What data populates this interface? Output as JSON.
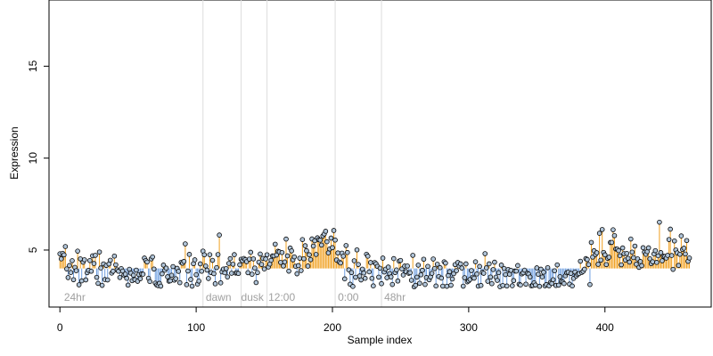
{
  "chart_data": {
    "type": "scatter",
    "title": "",
    "xlabel": "Sample index",
    "ylabel": "Expression",
    "xlim": [
      -8,
      478
    ],
    "ylim": [
      1.9,
      18.6
    ],
    "xticks": [
      0,
      100,
      200,
      300,
      400
    ],
    "yticks": [
      5,
      10,
      15
    ],
    "grid": false,
    "baseline": 4.0,
    "colors": {
      "above": "#f0a020",
      "below": "#6f9fe0",
      "point_fill": "#b0c4d8",
      "point_stroke": "#000000",
      "vline": "#dddddd",
      "annotation": "#a0a0a0"
    },
    "vlines": [
      105,
      133,
      152,
      202,
      236
    ],
    "annotations": [
      {
        "x": 3,
        "text": "24hr"
      },
      {
        "x": 107,
        "text": "dawn"
      },
      {
        "x": 133,
        "text": "dusk"
      },
      {
        "x": 153,
        "text": "12:00"
      },
      {
        "x": 204,
        "text": "0:00"
      },
      {
        "x": 238,
        "text": "48hr"
      }
    ],
    "knots": [
      [
        0,
        4.1
      ],
      [
        30,
        4.0
      ],
      [
        60,
        3.6
      ],
      [
        100,
        3.9
      ],
      [
        130,
        4.1
      ],
      [
        150,
        4.3
      ],
      [
        160,
        4.8
      ],
      [
        175,
        4.6
      ],
      [
        195,
        5.5
      ],
      [
        200,
        5.3
      ],
      [
        215,
        3.6
      ],
      [
        240,
        4.1
      ],
      [
        260,
        3.8
      ],
      [
        300,
        3.6
      ],
      [
        330,
        3.5
      ],
      [
        380,
        3.5
      ],
      [
        390,
        4.8
      ],
      [
        420,
        4.9
      ],
      [
        440,
        4.6
      ],
      [
        462,
        5.1
      ]
    ],
    "n_points": 463,
    "noise_sd": 0.48,
    "seed": 7
  }
}
